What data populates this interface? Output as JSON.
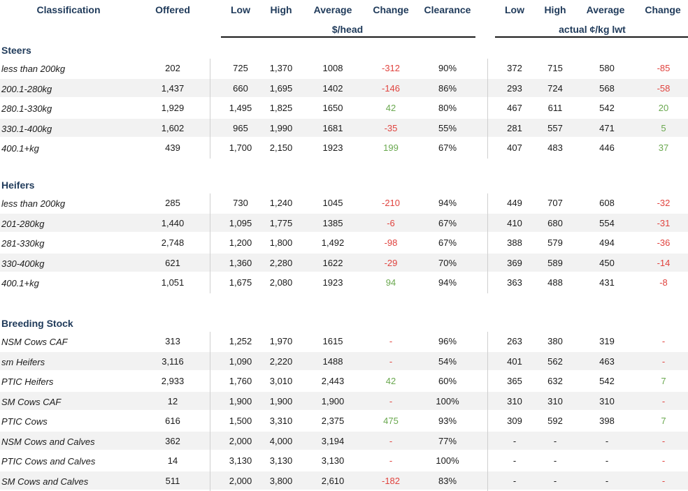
{
  "header": {
    "classification": "Classification",
    "offered": "Offered",
    "low": "Low",
    "high": "High",
    "average": "Average",
    "change": "Change",
    "clearance": "Clearance",
    "unit_head": "$/head",
    "low2": "Low",
    "high2": "High",
    "average2": "Average",
    "change2": "Change",
    "unit_kg": "actual ¢/kg lwt"
  },
  "sections": [
    {
      "title": "Steers",
      "rows": [
        {
          "label": "less than 200kg",
          "offered": "202",
          "low": "725",
          "high": "1,370",
          "avg": "1008",
          "change": "-312",
          "clearance": "90%",
          "low2": "372",
          "high2": "715",
          "avg2": "580",
          "change2": "-85"
        },
        {
          "label": "200.1-280kg",
          "offered": "1,437",
          "low": "660",
          "high": "1,695",
          "avg": "1402",
          "change": "-146",
          "clearance": "86%",
          "low2": "293",
          "high2": "724",
          "avg2": "568",
          "change2": "-58"
        },
        {
          "label": "280.1-330kg",
          "offered": "1,929",
          "low": "1,495",
          "high": "1,825",
          "avg": "1650",
          "change": "42",
          "clearance": "80%",
          "low2": "467",
          "high2": "611",
          "avg2": "542",
          "change2": "20"
        },
        {
          "label": "330.1-400kg",
          "offered": "1,602",
          "low": "965",
          "high": "1,990",
          "avg": "1681",
          "change": "-35",
          "clearance": "55%",
          "low2": "281",
          "high2": "557",
          "avg2": "471",
          "change2": "5"
        },
        {
          "label": "400.1+kg",
          "offered": "439",
          "low": "1,700",
          "high": "2,150",
          "avg": "1923",
          "change": "199",
          "clearance": "67%",
          "low2": "407",
          "high2": "483",
          "avg2": "446",
          "change2": "37"
        }
      ]
    },
    {
      "title": "Heifers",
      "rows": [
        {
          "label": "less than 200kg",
          "offered": "285",
          "low": "730",
          "high": "1,240",
          "avg": "1045",
          "change": "-210",
          "clearance": "94%",
          "low2": "449",
          "high2": "707",
          "avg2": "608",
          "change2": "-32"
        },
        {
          "label": "201-280kg",
          "offered": "1,440",
          "low": "1,095",
          "high": "1,775",
          "avg": "1385",
          "change": "-6",
          "clearance": "67%",
          "low2": "410",
          "high2": "680",
          "avg2": "554",
          "change2": "-31"
        },
        {
          "label": "281-330kg",
          "offered": "2,748",
          "low": "1,200",
          "high": "1,800",
          "avg": "1,492",
          "change": "-98",
          "clearance": "67%",
          "low2": "388",
          "high2": "579",
          "avg2": "494",
          "change2": "-36"
        },
        {
          "label": "330-400kg",
          "offered": "621",
          "low": "1,360",
          "high": "2,280",
          "avg": "1622",
          "change": "-29",
          "clearance": "70%",
          "low2": "369",
          "high2": "589",
          "avg2": "450",
          "change2": "-14"
        },
        {
          "label": "400.1+kg",
          "offered": "1,051",
          "low": "1,675",
          "high": "2,080",
          "avg": "1923",
          "change": "94",
          "clearance": "94%",
          "low2": "363",
          "high2": "488",
          "avg2": "431",
          "change2": "-8"
        }
      ]
    },
    {
      "title": "Breeding Stock",
      "rows": [
        {
          "label": "NSM Cows CAF",
          "offered": "313",
          "low": "1,252",
          "high": "1,970",
          "avg": "1615",
          "change": "-",
          "clearance": "96%",
          "low2": "263",
          "high2": "380",
          "avg2": "319",
          "change2": "-"
        },
        {
          "label": "sm Heifers",
          "offered": "3,116",
          "low": "1,090",
          "high": "2,220",
          "avg": "1488",
          "change": "-",
          "clearance": "54%",
          "low2": "401",
          "high2": "562",
          "avg2": "463",
          "change2": "-"
        },
        {
          "label": "PTIC Heifers",
          "offered": "2,933",
          "low": "1,760",
          "high": "3,010",
          "avg": "2,443",
          "change": "42",
          "clearance": "60%",
          "low2": "365",
          "high2": "632",
          "avg2": "542",
          "change2": "7"
        },
        {
          "label": "SM Cows CAF",
          "offered": "12",
          "low": "1,900",
          "high": "1,900",
          "avg": "1,900",
          "change": "-",
          "clearance": "100%",
          "low2": "310",
          "high2": "310",
          "avg2": "310",
          "change2": "-"
        },
        {
          "label": "PTIC Cows",
          "offered": "616",
          "low": "1,500",
          "high": "3,310",
          "avg": "2,375",
          "change": "475",
          "clearance": "93%",
          "low2": "309",
          "high2": "592",
          "avg2": "398",
          "change2": "7"
        },
        {
          "label": "NSM Cows and Calves",
          "offered": "362",
          "low": "2,000",
          "high": "4,000",
          "avg": "3,194",
          "change": "-",
          "clearance": "77%",
          "low2": "-",
          "high2": "-",
          "avg2": "-",
          "change2": "-"
        },
        {
          "label": "PTIC Cows and Calves",
          "offered": "14",
          "low": "3,130",
          "high": "3,130",
          "avg": "3,130",
          "change": "-",
          "clearance": "100%",
          "low2": "-",
          "high2": "-",
          "avg2": "-",
          "change2": "-"
        },
        {
          "label": "SM Cows and Calves",
          "offered": "511",
          "low": "2,000",
          "high": "3,800",
          "avg": "2,610",
          "change": "-182",
          "clearance": "83%",
          "low2": "-",
          "high2": "-",
          "avg2": "-",
          "change2": "-"
        }
      ]
    }
  ],
  "colors": {
    "negative": "#e0433e",
    "positive": "#6aa84f",
    "header": "#1f3a5a",
    "shade": "#f2f2f2"
  }
}
